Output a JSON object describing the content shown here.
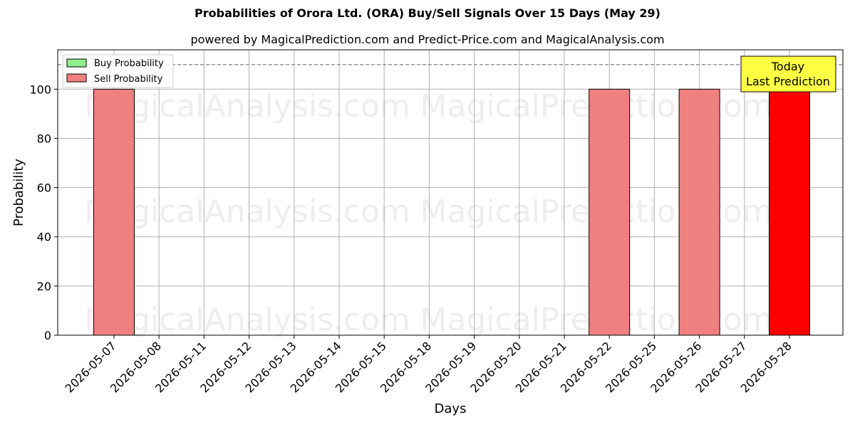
{
  "title": "Probabilities of Orora Ltd. (ORA) Buy/Sell Signals Over 15 Days (May 29)",
  "subtitle": "powered by MagicalPrediction.com and Predict-Price.com and MagicalAnalysis.com",
  "watermarks": [
    "MagicalAnalysis.com",
    "MagicalPrediction.com"
  ],
  "today_box": [
    "Today",
    "Last Prediction"
  ],
  "colors": {
    "buy": "#90ee90",
    "sell": "#f08080",
    "sell_today": "#ff0000",
    "today_box": "#ffff44",
    "grid": "#b0b0b0",
    "dashed": "#808080"
  },
  "chart_data": {
    "type": "bar",
    "xlabel": "Days",
    "ylabel": "Probability",
    "ylim": [
      0,
      116
    ],
    "yticks": [
      0,
      20,
      40,
      60,
      80,
      100
    ],
    "reference_line": 110,
    "grid": true,
    "legend_position": "top-left",
    "categories": [
      "2026-05-07",
      "2026-05-08",
      "2026-05-11",
      "2026-05-12",
      "2026-05-13",
      "2026-05-14",
      "2026-05-15",
      "2026-05-18",
      "2026-05-19",
      "2026-05-20",
      "2026-05-21",
      "2026-05-22",
      "2026-05-25",
      "2026-05-26",
      "2026-05-27",
      "2026-05-28"
    ],
    "series": [
      {
        "name": "Buy Probability",
        "values": [
          0,
          0,
          0,
          0,
          0,
          0,
          0,
          0,
          0,
          0,
          0,
          0,
          0,
          0,
          0,
          0
        ]
      },
      {
        "name": "Sell Probability",
        "values": [
          100,
          0,
          0,
          0,
          0,
          0,
          0,
          0,
          0,
          0,
          0,
          100,
          0,
          100,
          0,
          100
        ]
      }
    ],
    "highlight_index": 15
  }
}
